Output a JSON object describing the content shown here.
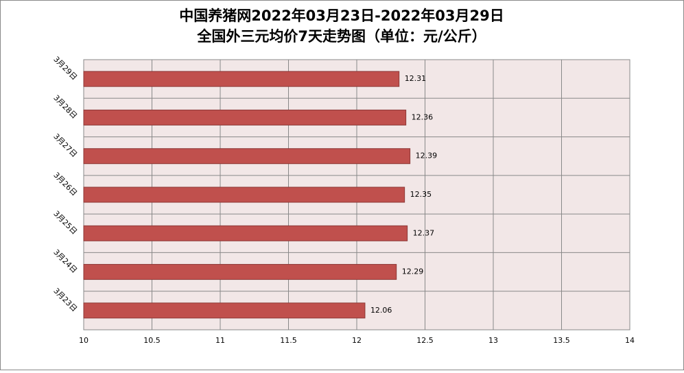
{
  "chart_data": {
    "type": "bar",
    "orientation": "horizontal",
    "title": "中国养猪网2022年03月23日-2022年03月29日",
    "subtitle": "全国外三元均价7天走势图（单位：元/公斤）",
    "categories": [
      "3月29日",
      "3月28日",
      "3月27日",
      "3月26日",
      "3月25日",
      "3月24日",
      "3月23日"
    ],
    "values": [
      12.31,
      12.36,
      12.39,
      12.35,
      12.37,
      12.29,
      12.06
    ],
    "color": "#c0504d",
    "xlim": [
      10,
      14
    ],
    "xticks": [
      10,
      10.5,
      11,
      11.5,
      12,
      12.5,
      13,
      13.5,
      14
    ],
    "grid": true
  }
}
